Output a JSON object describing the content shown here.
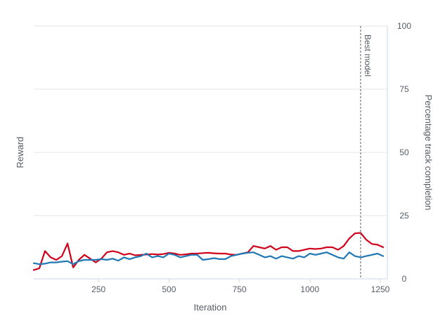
{
  "chart_data": {
    "type": "line",
    "x_axis": {
      "label": "Iteration",
      "ticks": [
        "250",
        "500",
        "750",
        "1000",
        "1250"
      ],
      "tick_values": [
        250,
        500,
        750,
        1000,
        1250
      ],
      "range": [
        20,
        1275
      ]
    },
    "y_axis_left": {
      "label": "Reward",
      "range": [
        0,
        100
      ]
    },
    "y_axis_right": {
      "label": "Percentage track completion",
      "ticks": [
        "0",
        "25",
        "50",
        "75",
        "100"
      ],
      "tick_values": [
        0,
        25,
        50,
        75,
        100
      ],
      "range": [
        0,
        100
      ]
    },
    "grid": true,
    "annotation": {
      "label": "Best model",
      "x": 1180
    },
    "series": [
      {
        "name": "Percentage track completion",
        "color": "#d0021b",
        "x": [
          20,
          40,
          60,
          80,
          100,
          120,
          140,
          160,
          180,
          200,
          220,
          240,
          260,
          280,
          300,
          320,
          340,
          360,
          380,
          400,
          420,
          440,
          460,
          480,
          500,
          520,
          540,
          560,
          580,
          600,
          620,
          640,
          660,
          680,
          700,
          720,
          740,
          760,
          780,
          800,
          820,
          840,
          860,
          880,
          900,
          920,
          940,
          960,
          980,
          1000,
          1020,
          1040,
          1060,
          1080,
          1100,
          1120,
          1140,
          1160,
          1180,
          1200,
          1220,
          1240,
          1260
        ],
        "values": [
          3.5,
          4.2,
          11,
          8.5,
          7.5,
          9,
          14,
          4.5,
          7.5,
          9.5,
          8,
          6.5,
          8,
          10.5,
          11,
          10.5,
          9.5,
          10,
          9.3,
          9.5,
          9.6,
          9.8,
          9.6,
          9.8,
          10.3,
          10,
          9.5,
          9.7,
          10,
          10,
          10.2,
          10.3,
          10.1,
          10,
          10,
          9.6,
          9.5,
          10,
          10.5,
          13,
          12.5,
          12,
          13,
          11.5,
          12.5,
          12.5,
          11,
          11,
          11.5,
          12,
          11.8,
          12,
          12.5,
          12.5,
          11.5,
          13,
          16,
          18,
          18.2,
          15.5,
          13.8,
          13.5,
          12.5
        ]
      },
      {
        "name": "Reward",
        "color": "#1f77b4",
        "x": [
          20,
          40,
          60,
          80,
          100,
          120,
          140,
          160,
          180,
          200,
          220,
          240,
          260,
          280,
          300,
          320,
          340,
          360,
          380,
          400,
          420,
          440,
          460,
          480,
          500,
          520,
          540,
          560,
          580,
          600,
          620,
          640,
          660,
          680,
          700,
          720,
          740,
          760,
          780,
          800,
          820,
          840,
          860,
          880,
          900,
          920,
          940,
          960,
          980,
          1000,
          1020,
          1040,
          1060,
          1080,
          1100,
          1120,
          1140,
          1160,
          1180,
          1200,
          1220,
          1240,
          1260
        ],
        "values": [
          6.2,
          5.8,
          6,
          6.5,
          6.5,
          6.8,
          7,
          5.8,
          7,
          7.5,
          7.5,
          7.5,
          7.8,
          7.5,
          8,
          7.2,
          8.5,
          7.8,
          8.5,
          9,
          10,
          8.5,
          9,
          8.5,
          10,
          9.5,
          8.5,
          9,
          9.5,
          9.5,
          7.5,
          7.8,
          8.2,
          7.8,
          7.8,
          9,
          9.5,
          10,
          10.3,
          10.5,
          9.5,
          8.5,
          9,
          8,
          9,
          8.5,
          8,
          9,
          8.5,
          10,
          9.5,
          10,
          10.5,
          9.5,
          8.5,
          8,
          10.5,
          9,
          8.5,
          9,
          9.5,
          10,
          9
        ]
      }
    ]
  }
}
